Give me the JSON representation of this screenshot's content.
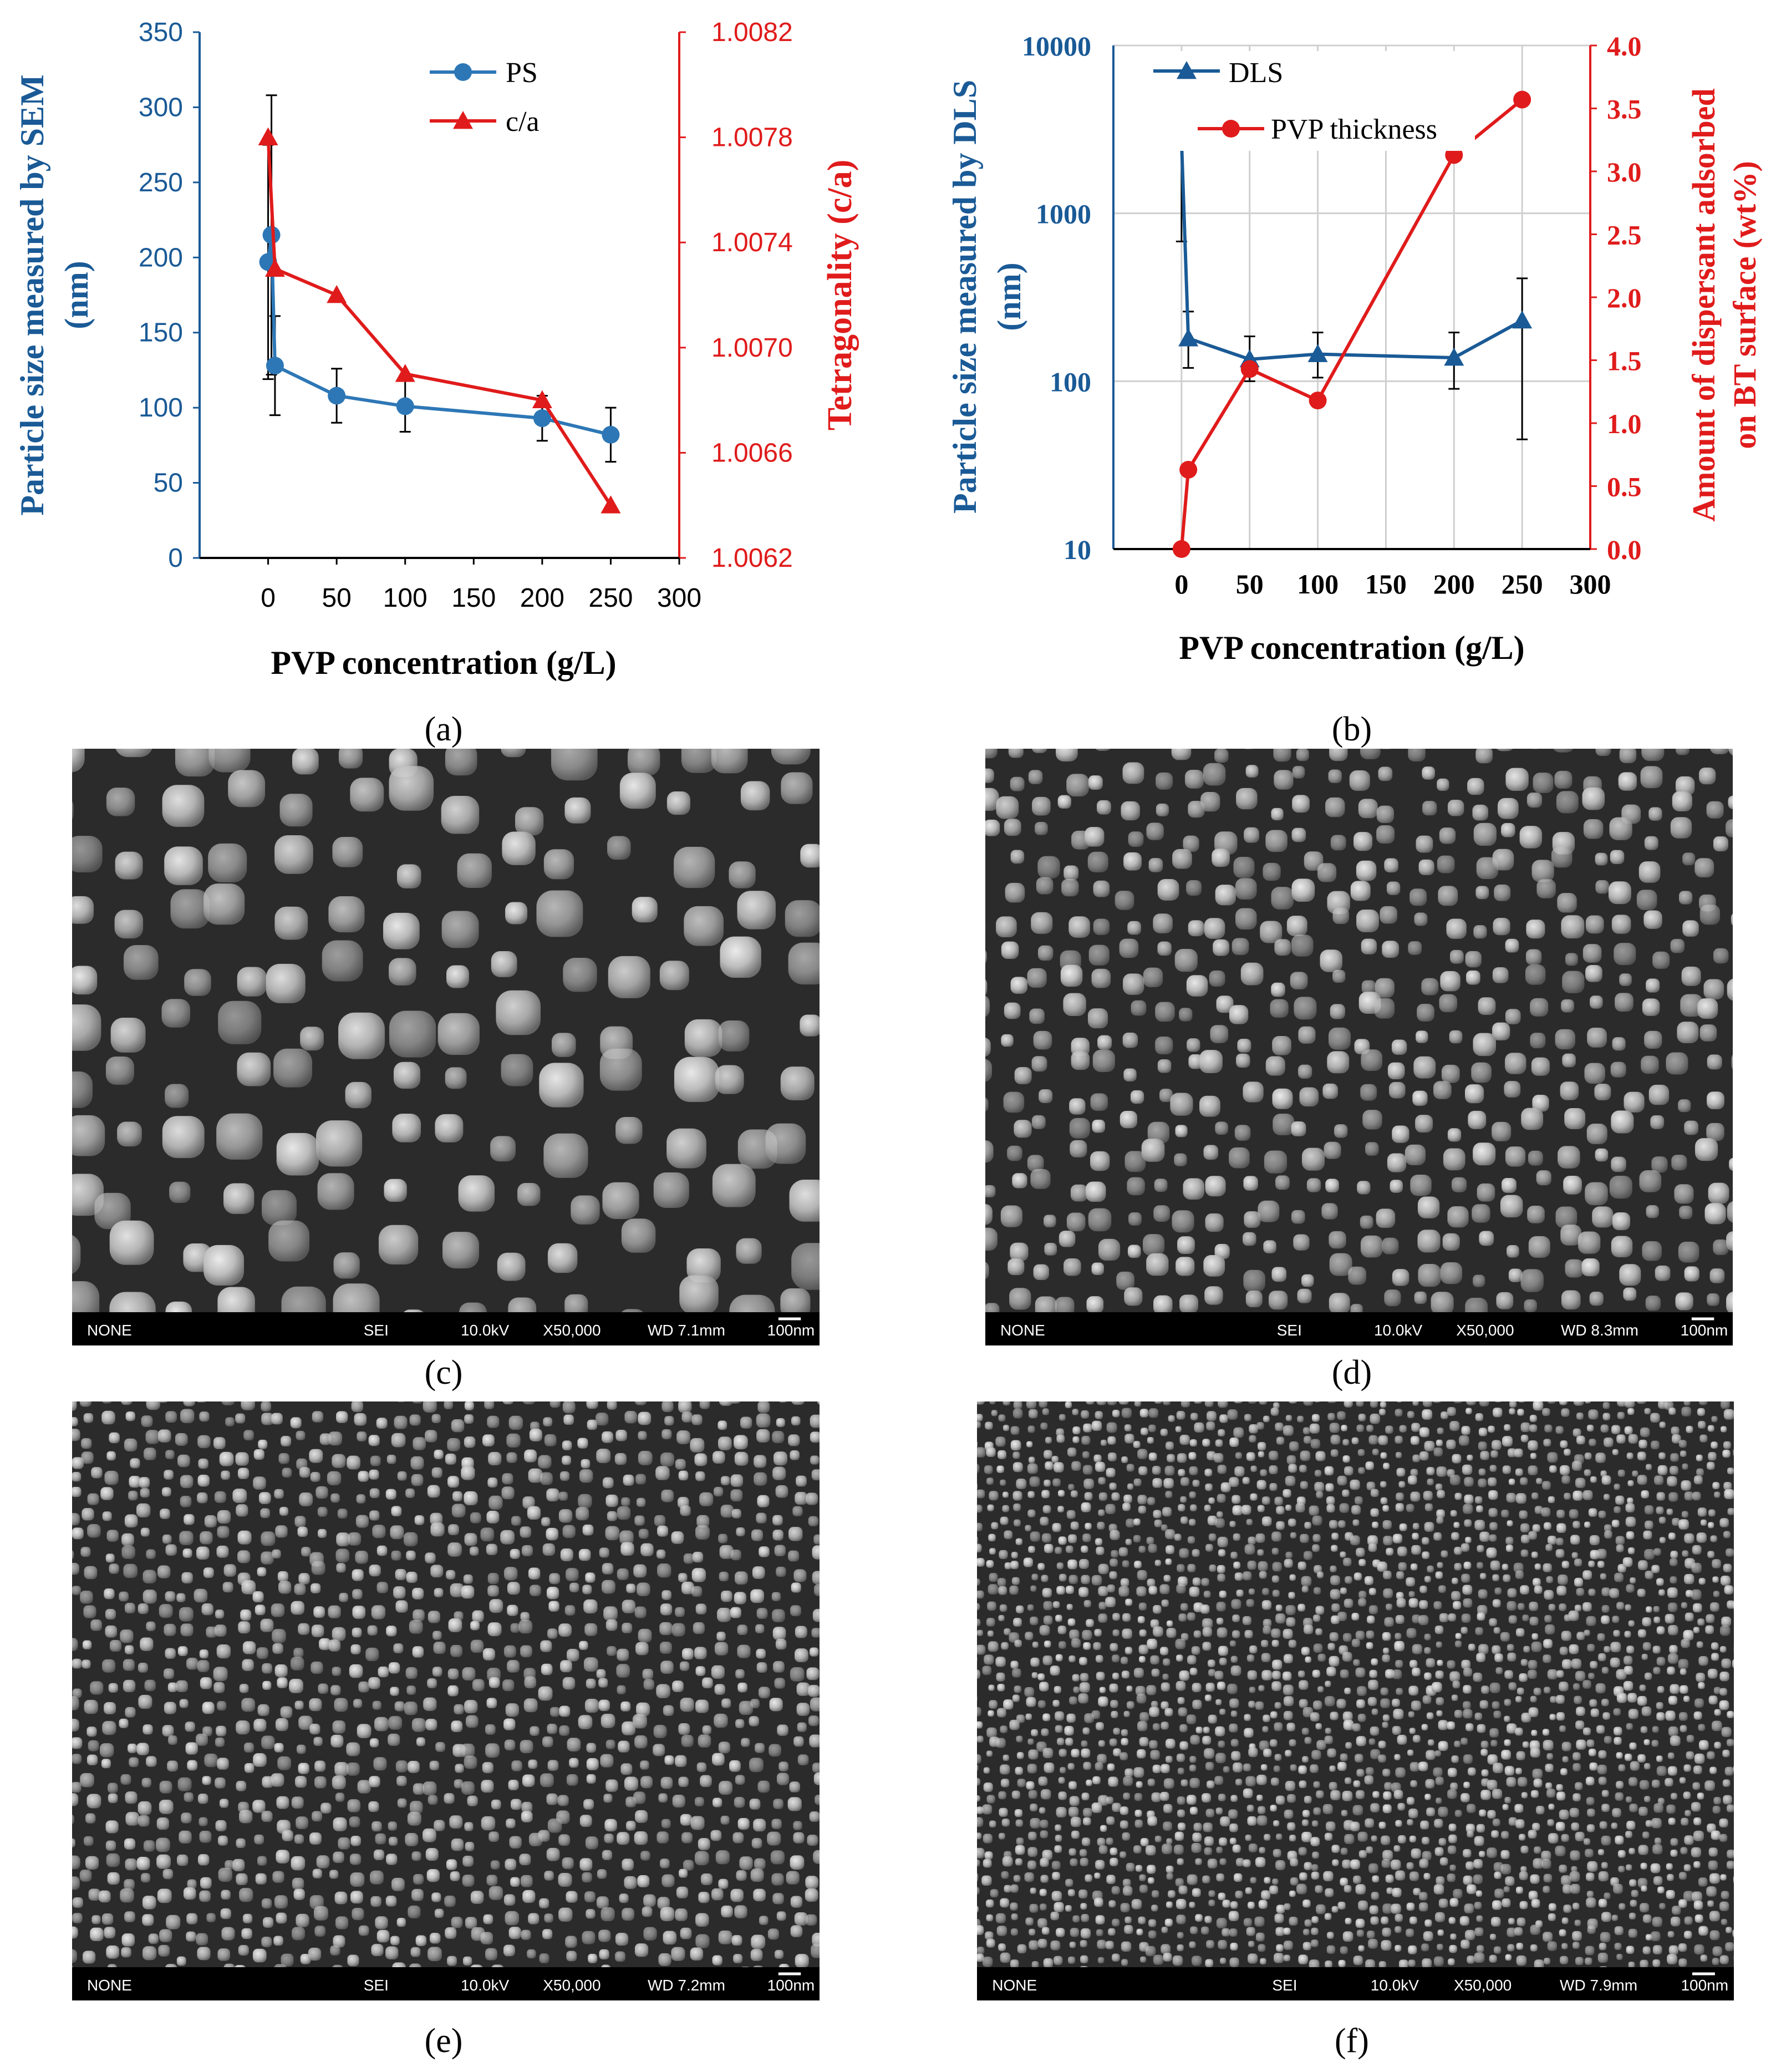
{
  "colors": {
    "blue": "#1a5a96",
    "blue_marker": "#2d77b6",
    "red": "#e01b1b",
    "grid": "#cfcfcf",
    "axis": "#000000"
  },
  "chart_data": [
    {
      "panel_label": "a",
      "type": "line",
      "xlabel": "PVP  concentration (g/L)",
      "xlim": [
        -50,
        300
      ],
      "xticks": [
        0,
        50,
        100,
        150,
        200,
        250,
        300
      ],
      "y_left": {
        "label_line1": "Particle size measured by SEM",
        "label_line2": "(nm)",
        "lim": [
          0,
          350
        ],
        "ticks": [
          0,
          50,
          100,
          150,
          200,
          250,
          300,
          350
        ]
      },
      "y_right": {
        "label": "Tetragonality (c/a)",
        "lim": [
          1.0062,
          1.0082
        ],
        "ticks": [
          "1.0062",
          "1.0066",
          "1.0070",
          "1.0074",
          "1.0078",
          "1.0082"
        ]
      },
      "grid": false,
      "legend_placement": "top-center",
      "series": [
        {
          "name": "PS",
          "axis": "left",
          "marker": "circle",
          "color": "blue",
          "x": [
            0,
            0,
            5,
            50,
            100,
            200,
            250
          ],
          "y": [
            197,
            215,
            128,
            108,
            101,
            93,
            82
          ],
          "err": [
            78,
            93,
            33,
            18,
            17,
            15,
            18
          ]
        },
        {
          "name": "c/a",
          "axis": "right",
          "marker": "triangle",
          "color": "red",
          "x": [
            0,
            5,
            50,
            100,
            200,
            250
          ],
          "y": [
            1.0078,
            1.0073,
            1.0072,
            1.0069,
            1.0068,
            1.0064
          ]
        }
      ]
    },
    {
      "panel_label": "b",
      "type": "line",
      "xlabel": "PVP concentration (g/L)",
      "xlim": [
        -50,
        300
      ],
      "xticks": [
        0,
        50,
        100,
        150,
        200,
        250,
        300
      ],
      "y_left": {
        "label_line1": "Particle size measured by DLS",
        "label_line2": "(nm)",
        "lim": [
          10,
          10000
        ],
        "scale": "log",
        "ticks": [
          "10",
          "100",
          "1000",
          "10000"
        ]
      },
      "y_right": {
        "label_line1": "Amount of dispersant adsorbed",
        "label_line2": "on BT surface (wt%)",
        "lim": [
          0,
          4.0
        ],
        "ticks": [
          "0.0",
          "0.5",
          "1.0",
          "1.5",
          "2.0",
          "2.5",
          "3.0",
          "3.5",
          "4.0"
        ]
      },
      "grid": true,
      "legend_placement": "top-left",
      "series": [
        {
          "name": "DLS",
          "axis": "left",
          "marker": "triangle",
          "color": "blue",
          "x": [
            0,
            5,
            50,
            100,
            200,
            250
          ],
          "y": [
            2700,
            180,
            135,
            145,
            138,
            230
          ],
          "err_low": [
            680,
            120,
            100,
            105,
            90,
            45
          ],
          "err_high": [
            6200,
            260,
            185,
            195,
            195,
            410
          ]
        },
        {
          "name": "PVP thickness",
          "axis": "right",
          "marker": "circle",
          "color": "red",
          "x": [
            0,
            5,
            50,
            100,
            200,
            250
          ],
          "y": [
            0,
            0.63,
            1.43,
            1.18,
            3.13,
            3.57
          ]
        }
      ]
    }
  ],
  "micrographs": [
    {
      "label": "c",
      "info": {
        "mode": "NONE",
        "detector": "SEI",
        "kv": "10.0kV",
        "mag": "X50,000",
        "wd": "WD 7.1mm",
        "scale": "100nm"
      },
      "particle_size": "large"
    },
    {
      "label": "d",
      "info": {
        "mode": "NONE",
        "detector": "SEI",
        "kv": "10.0kV",
        "mag": "X50,000",
        "wd": "WD 8.3mm",
        "scale": "100nm"
      },
      "particle_size": "medium"
    },
    {
      "label": "e",
      "info": {
        "mode": "NONE",
        "detector": "SEI",
        "kv": "10.0kV",
        "mag": "X50,000",
        "wd": "WD 7.2mm",
        "scale": "100nm"
      },
      "particle_size": "small"
    },
    {
      "label": "f",
      "info": {
        "mode": "NONE",
        "detector": "SEI",
        "kv": "10.0kV",
        "mag": "X50,000",
        "wd": "WD 7.9mm",
        "scale": "100nm"
      },
      "particle_size": "fine"
    }
  ]
}
